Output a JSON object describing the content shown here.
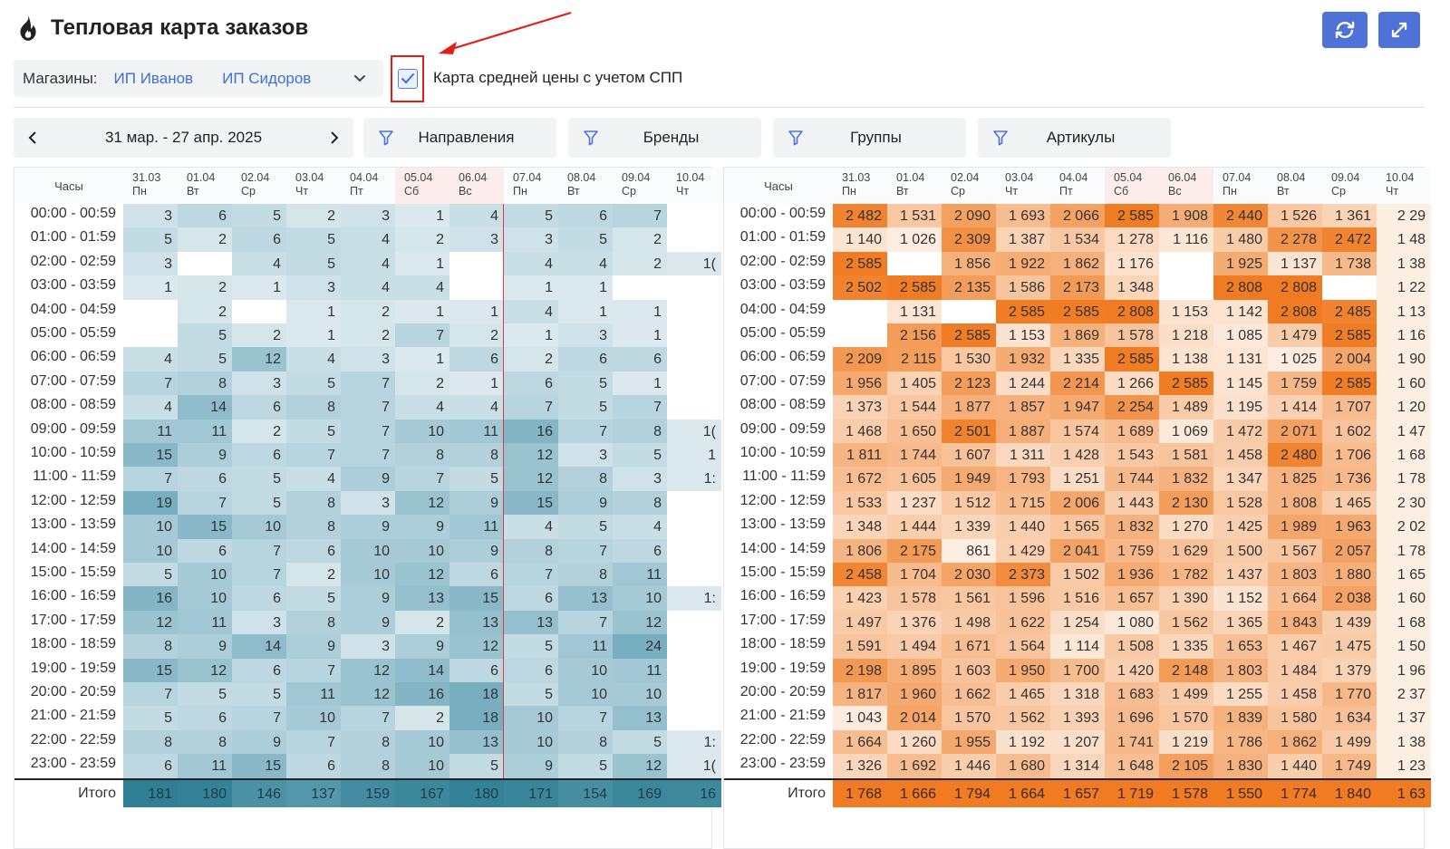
{
  "header": {
    "title": "Тепловая карта заказов",
    "refresh_icon": "refresh-icon",
    "expand_icon": "expand-icon"
  },
  "stores": {
    "label": "Магазины:",
    "items": [
      "ИП Иванов",
      "ИП Сидоров"
    ]
  },
  "checkbox": {
    "label": "Карта средней цены с учетом СПП",
    "checked": true
  },
  "date_range": {
    "label": "31 мар. - 27 апр. 2025"
  },
  "filters": [
    "Направления",
    "Бренды",
    "Группы",
    "Артикулы"
  ],
  "colors": {
    "accent": "#4f72d8",
    "blue_scale": "#2f7e94",
    "orange_scale": "#f07b22",
    "highlight": "#e31c1c"
  },
  "table_header": {
    "hours_label": "Часы",
    "total_label": "Итого"
  },
  "days": [
    {
      "date": "31.03",
      "dow": "Пн",
      "weekend": false
    },
    {
      "date": "01.04",
      "dow": "Вт",
      "weekend": false
    },
    {
      "date": "02.04",
      "dow": "Ср",
      "weekend": false
    },
    {
      "date": "03.04",
      "dow": "Чт",
      "weekend": false
    },
    {
      "date": "04.04",
      "dow": "Пт",
      "weekend": false
    },
    {
      "date": "05.04",
      "dow": "Сб",
      "weekend": true
    },
    {
      "date": "06.04",
      "dow": "Вс",
      "weekend": true
    },
    {
      "date": "07.04",
      "dow": "Пн",
      "weekend": false
    },
    {
      "date": "08.04",
      "dow": "Вт",
      "weekend": false
    },
    {
      "date": "09.04",
      "dow": "Ср",
      "weekend": false
    },
    {
      "date": "10.04",
      "dow": "Чт",
      "weekend": false
    }
  ],
  "hours": [
    "00:00 - 00:59",
    "01:00 - 01:59",
    "02:00 - 02:59",
    "03:00 - 03:59",
    "04:00 - 04:59",
    "05:00 - 05:59",
    "06:00 - 06:59",
    "07:00 - 07:59",
    "08:00 - 08:59",
    "09:00 - 09:59",
    "10:00 - 10:59",
    "11:00 - 11:59",
    "12:00 - 12:59",
    "13:00 - 13:59",
    "14:00 - 14:59",
    "15:00 - 15:59",
    "16:00 - 16:59",
    "17:00 - 17:59",
    "18:00 - 18:59",
    "19:00 - 19:59",
    "20:00 - 20:59",
    "21:00 - 21:59",
    "22:00 - 22:59",
    "23:00 - 23:59"
  ],
  "orders": {
    "max": 24,
    "rows": [
      [
        3,
        6,
        5,
        2,
        3,
        1,
        4,
        5,
        6,
        7,
        null
      ],
      [
        5,
        2,
        6,
        5,
        4,
        2,
        3,
        3,
        5,
        2,
        null
      ],
      [
        3,
        null,
        4,
        5,
        4,
        1,
        null,
        4,
        4,
        2,
        "1("
      ],
      [
        1,
        2,
        1,
        3,
        4,
        4,
        null,
        1,
        1,
        null,
        null
      ],
      [
        null,
        2,
        null,
        1,
        2,
        1,
        1,
        4,
        1,
        1,
        null
      ],
      [
        null,
        5,
        2,
        1,
        2,
        7,
        2,
        1,
        3,
        1,
        null
      ],
      [
        4,
        5,
        12,
        4,
        3,
        1,
        6,
        2,
        6,
        6,
        null
      ],
      [
        7,
        8,
        3,
        5,
        7,
        2,
        1,
        6,
        5,
        1,
        null
      ],
      [
        4,
        14,
        6,
        8,
        7,
        4,
        4,
        7,
        5,
        7,
        null
      ],
      [
        11,
        11,
        2,
        5,
        7,
        10,
        11,
        16,
        7,
        8,
        "1("
      ],
      [
        15,
        9,
        6,
        7,
        7,
        8,
        8,
        12,
        3,
        5,
        "1"
      ],
      [
        7,
        6,
        5,
        4,
        9,
        7,
        5,
        12,
        8,
        3,
        "1:"
      ],
      [
        19,
        7,
        5,
        8,
        3,
        12,
        9,
        15,
        9,
        8,
        null
      ],
      [
        10,
        15,
        10,
        8,
        9,
        9,
        11,
        4,
        5,
        4,
        null
      ],
      [
        10,
        6,
        7,
        6,
        10,
        10,
        9,
        8,
        7,
        6,
        null
      ],
      [
        5,
        10,
        7,
        2,
        10,
        12,
        6,
        7,
        8,
        11,
        null
      ],
      [
        16,
        10,
        6,
        5,
        9,
        13,
        15,
        6,
        13,
        10,
        "1:"
      ],
      [
        12,
        11,
        3,
        8,
        9,
        2,
        13,
        13,
        7,
        12,
        null
      ],
      [
        8,
        9,
        14,
        9,
        3,
        9,
        12,
        5,
        11,
        24,
        null
      ],
      [
        15,
        12,
        6,
        7,
        12,
        14,
        6,
        6,
        10,
        11,
        null
      ],
      [
        7,
        5,
        5,
        11,
        12,
        16,
        18,
        5,
        10,
        10,
        null
      ],
      [
        5,
        6,
        7,
        10,
        7,
        2,
        18,
        10,
        7,
        13,
        null
      ],
      [
        8,
        8,
        9,
        7,
        8,
        10,
        13,
        10,
        8,
        5,
        "1:"
      ],
      [
        6,
        11,
        15,
        6,
        8,
        10,
        5,
        9,
        5,
        12,
        "1("
      ]
    ],
    "totals": [
      "181",
      "180",
      "146",
      "137",
      "159",
      "167",
      "180",
      "171",
      "154",
      "169",
      "16"
    ],
    "row_shade": [
      0.33,
      0.33,
      0.42,
      0.25,
      0.33,
      0.33,
      0.42,
      0.42,
      0.42,
      0.58,
      0.58,
      0.5,
      0.58,
      0.5,
      0.5,
      0.5,
      0.58,
      0.5,
      0.58,
      0.58,
      0.58,
      0.5,
      0.5,
      0.5
    ],
    "totals_shade": [
      1,
      0.95,
      0.72,
      0.65,
      0.82,
      0.88,
      0.95,
      0.9,
      0.78,
      0.88,
      0.85
    ]
  },
  "prices": {
    "rows": [
      [
        "2 482",
        "1 531",
        "2 090",
        "1 693",
        "2 066",
        "2 585",
        "1 908",
        "2 440",
        "1 526",
        "1 361",
        "2 29"
      ],
      [
        "1 140",
        "1 026",
        "2 309",
        "1 387",
        "1 534",
        "1 278",
        "1 116",
        "1 480",
        "2 278",
        "2 472",
        "1 48"
      ],
      [
        "2 585",
        null,
        "1 856",
        "1 922",
        "1 862",
        "1 176",
        null,
        "1 925",
        "1 137",
        "1 738",
        "1 38"
      ],
      [
        "2 502",
        "2 585",
        "2 135",
        "1 586",
        "2 173",
        "1 348",
        null,
        "2 808",
        "2 808",
        null,
        "1 22"
      ],
      [
        null,
        "1 131",
        null,
        "2 585",
        "2 585",
        "2 808",
        "1 153",
        "1 142",
        "2 808",
        "2 485",
        "1 13"
      ],
      [
        null,
        "2 156",
        "2 585",
        "1 153",
        "1 869",
        "1 578",
        "1 218",
        "1 085",
        "1 479",
        "2 585",
        "1 16"
      ],
      [
        "2 209",
        "2 115",
        "1 530",
        "1 932",
        "1 335",
        "2 585",
        "1 138",
        "1 131",
        "1 025",
        "2 004",
        "1 90"
      ],
      [
        "1 956",
        "1 405",
        "2 123",
        "1 244",
        "2 214",
        "1 266",
        "2 585",
        "1 145",
        "1 759",
        "2 585",
        "1 60"
      ],
      [
        "1 373",
        "1 544",
        "1 877",
        "1 857",
        "1 947",
        "2 254",
        "1 489",
        "1 195",
        "1 414",
        "1 707",
        "1 20"
      ],
      [
        "1 468",
        "1 650",
        "2 501",
        "1 887",
        "1 574",
        "1 689",
        "1 069",
        "1 472",
        "2 071",
        "1 602",
        "1 47"
      ],
      [
        "1 811",
        "1 744",
        "1 607",
        "1 311",
        "1 428",
        "1 543",
        "1 581",
        "1 458",
        "2 480",
        "1 706",
        "1 68"
      ],
      [
        "1 672",
        "1 605",
        "1 949",
        "1 793",
        "1 251",
        "1 744",
        "1 832",
        "1 347",
        "1 825",
        "1 736",
        "1 78"
      ],
      [
        "1 533",
        "1 237",
        "1 512",
        "1 715",
        "2 006",
        "1 443",
        "2 130",
        "1 528",
        "1 808",
        "1 465",
        "2 30"
      ],
      [
        "1 348",
        "1 444",
        "1 339",
        "1 440",
        "1 565",
        "1 832",
        "1 270",
        "1 425",
        "1 989",
        "1 963",
        "2 02"
      ],
      [
        "1 806",
        "2 175",
        "861",
        "1 429",
        "2 041",
        "1 759",
        "1 629",
        "1 500",
        "1 567",
        "2 057",
        "1 78"
      ],
      [
        "2 458",
        "1 704",
        "2 030",
        "2 373",
        "1 502",
        "1 936",
        "1 782",
        "1 437",
        "1 803",
        "1 880",
        "1 65"
      ],
      [
        "1 423",
        "1 578",
        "1 561",
        "1 596",
        "1 516",
        "1 657",
        "1 390",
        "1 152",
        "1 664",
        "2 038",
        "1 60"
      ],
      [
        "1 497",
        "1 376",
        "1 498",
        "1 622",
        "1 254",
        "1 080",
        "1 562",
        "1 365",
        "1 843",
        "1 439",
        "1 68"
      ],
      [
        "1 591",
        "1 494",
        "1 671",
        "1 564",
        "1 114",
        "1 508",
        "1 335",
        "1 653",
        "1 467",
        "1 475",
        "1 50"
      ],
      [
        "2 198",
        "1 895",
        "1 603",
        "1 950",
        "1 700",
        "1 420",
        "2 148",
        "1 803",
        "1 484",
        "1 379",
        "1 96"
      ],
      [
        "1 817",
        "1 960",
        "1 662",
        "1 465",
        "1 318",
        "1 683",
        "1 499",
        "1 255",
        "1 458",
        "1 770",
        "2 37"
      ],
      [
        "1 043",
        "2 014",
        "1 570",
        "1 562",
        "1 393",
        "1 696",
        "1 570",
        "1 839",
        "1 580",
        "1 634",
        "1 37"
      ],
      [
        "1 664",
        "1 260",
        "1 955",
        "1 192",
        "1 207",
        "1 741",
        "1 219",
        "1 786",
        "1 862",
        "1 499",
        "1 38"
      ],
      [
        "1 326",
        "1 692",
        "1 446",
        "1 680",
        "1 314",
        "1 648",
        "2 105",
        "1 830",
        "1 440",
        "1 749",
        "1 23"
      ]
    ],
    "totals": [
      "1 768",
      "1 666",
      "1 794",
      "1 664",
      "1 657",
      "1 719",
      "1 578",
      "1 550",
      "1 774",
      "1 840",
      "1 63"
    ]
  }
}
